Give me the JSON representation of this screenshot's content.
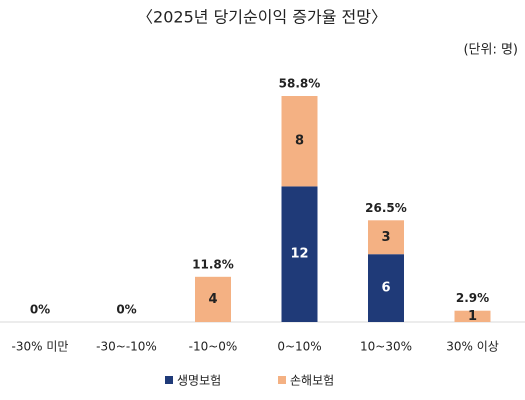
{
  "chart_data": {
    "type": "stacked_bar",
    "title": "〈2025년 당기순이익 증가율 전망〉",
    "unit_label": "(단위: 명)",
    "categories": [
      "-30% 미만",
      "-30~-10%",
      "-10~0%",
      "0~10%",
      "10~30%",
      "30% 이상"
    ],
    "series": [
      {
        "name": "생명보험",
        "color": "#1f3a78",
        "label_color": "#ffffff",
        "values": [
          0,
          0,
          0,
          12,
          6,
          0
        ]
      },
      {
        "name": "손해보험",
        "color": "#f4b183",
        "label_color": "#222222",
        "values": [
          0,
          0,
          4,
          8,
          3,
          1
        ]
      }
    ],
    "totals": {
      "values": [
        0,
        0,
        11.8,
        58.8,
        26.5,
        2.9
      ],
      "value_labels": [
        "0%",
        "0%",
        "11.8%",
        "58.8%",
        "26.5%",
        "2.9%"
      ]
    },
    "legend": "bottom"
  }
}
